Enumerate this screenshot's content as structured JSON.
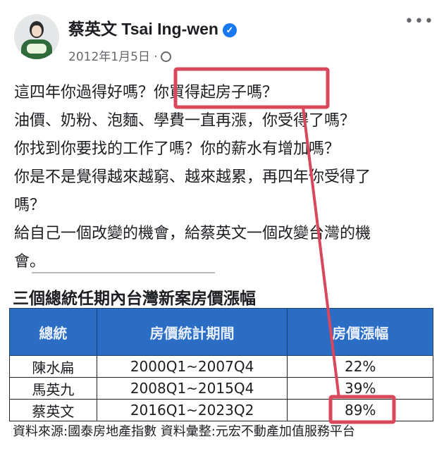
{
  "post": {
    "author": "蔡英文 Tsai Ing-wen",
    "date": "2012年1月5日",
    "separator": "·",
    "privacy_icon": "globe-icon",
    "more_label": "•••",
    "lines": [
      "這四年你過得好嗎？你買得起房子嗎？",
      "油價、奶粉、泡麵、學費一直再漲，你受得了嗎？",
      "你找到你要找的工作了嗎？你的薪水有增加嗎？",
      "你是不是覺得越來越窮、越來越累，再四年你受得了",
      "嗎？",
      "給自己一個改變的機會，給蔡英文一個改變台灣的機",
      "會。"
    ]
  },
  "table": {
    "title": "三個總統任期內台灣新案房價漲幅",
    "headers": [
      "總統",
      "房價統計期間",
      "房價漲幅"
    ],
    "rows": [
      [
        "陳水扁",
        "2000Q1~2007Q4",
        "22%"
      ],
      [
        "馬英九",
        "2008Q1~2015Q4",
        "39%"
      ],
      [
        "蔡英文",
        "2016Q1~2023Q2",
        "89%"
      ]
    ],
    "source": "資料來源:國泰房地產指數  資料彙整:元宏不動產加值服務平台"
  },
  "colors": {
    "highlight": "#d9475a",
    "header_bg": "#2b6cc4",
    "verified": "#1877f2"
  }
}
